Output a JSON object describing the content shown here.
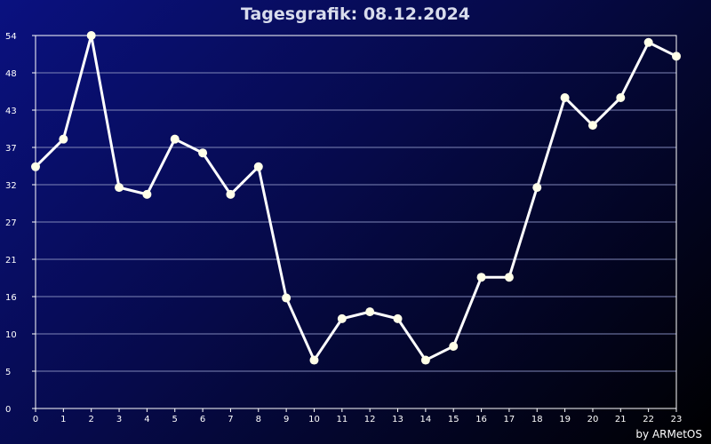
{
  "chart_data": {
    "type": "line",
    "title": "Tagesgrafik: 08.12.2024",
    "xlabel": "",
    "ylabel": "",
    "x": [
      0,
      1,
      2,
      3,
      4,
      5,
      6,
      7,
      8,
      9,
      10,
      11,
      12,
      13,
      14,
      15,
      16,
      17,
      18,
      19,
      20,
      21,
      22,
      23
    ],
    "series": [
      {
        "values": [
          35,
          39,
          54,
          32,
          31,
          39,
          37,
          31,
          35,
          16,
          7,
          13,
          14,
          13,
          7,
          9,
          19,
          19,
          32,
          45,
          41,
          45,
          53,
          51
        ]
      }
    ],
    "ylim": [
      0,
      54
    ],
    "ytick_labels": [
      "0",
      "5",
      "10",
      "16",
      "21",
      "27",
      "32",
      "37",
      "43",
      "48",
      "54"
    ],
    "xlim": [
      0,
      23
    ],
    "grid": true,
    "colors": {
      "line": "#ffffff",
      "marker": "#ffffe8",
      "grid": "#7f86b8",
      "axes": "#ffffff"
    }
  },
  "credit": "by ARMetOS"
}
